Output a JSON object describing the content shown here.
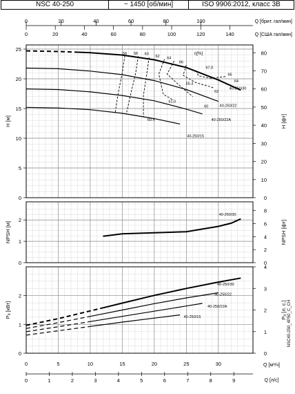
{
  "header": {
    "model": "NSC 40-250",
    "speed": "~ 1450 [об/мин]",
    "standard": "ISO 9906:2012, класс 3B"
  },
  "side_code": "NSC40-250_4P50_C_CH",
  "chart_data": {
    "type": "line",
    "top_axes": {
      "brit": {
        "label": "Q [брит. гал/мин]",
        "ticks": [
          0,
          20,
          40,
          60,
          80,
          100
        ],
        "range": [
          0,
          129.8
        ]
      },
      "us": {
        "label": "Q [США гал/мин]",
        "ticks": [
          0,
          20,
          40,
          60,
          80,
          100,
          120,
          140
        ],
        "range": [
          0,
          155.9
        ]
      }
    },
    "bottom_axes": {
      "m3h": {
        "label": "Q [м³/ч]",
        "ticks": [
          0,
          5,
          10,
          15,
          20,
          25,
          30
        ],
        "range": [
          0,
          35.4
        ]
      },
      "ls": {
        "label": "Q [л/с]",
        "ticks": [
          0,
          1,
          2,
          3,
          4,
          5,
          6,
          7,
          8,
          9
        ],
        "range": [
          0,
          9.83
        ]
      }
    },
    "head_panel": {
      "ylabel": "H [м]",
      "ylim": [
        0,
        25.7
      ],
      "yticks": [
        0,
        5,
        10,
        15,
        20,
        25
      ],
      "ylabel_right": "H [фт]",
      "ylim_right": [
        0,
        84.3
      ],
      "yticks_right": [
        0,
        10,
        20,
        30,
        40,
        50,
        60,
        70,
        80
      ],
      "eff_unit": "η[%]",
      "series": [
        {
          "name": "40-250/30",
          "x": [
            0,
            5,
            10,
            15,
            20,
            25,
            30,
            33.5
          ],
          "y": [
            24.7,
            24.6,
            24.4,
            24,
            23.2,
            21.9,
            19.8,
            18.1
          ],
          "dash_to": 8
        },
        {
          "name": "40-250/22",
          "x": [
            0,
            5,
            10,
            15,
            20,
            25,
            30
          ],
          "y": [
            21.8,
            21.7,
            21.3,
            20.7,
            19.7,
            18.2,
            16.2
          ]
        },
        {
          "name": "40-250/22A",
          "x": [
            0,
            5,
            10,
            15,
            20,
            25,
            27.5
          ],
          "y": [
            18.3,
            18.2,
            17.8,
            17.2,
            16.3,
            14.9,
            14.1
          ]
        },
        {
          "name": "40-250/15",
          "x": [
            0,
            5,
            10,
            15,
            20,
            24
          ],
          "y": [
            15.2,
            15.1,
            14.8,
            14.2,
            13.3,
            12.4
          ]
        }
      ],
      "iso_efficiency": [
        {
          "label": "56",
          "x": [
            15.4,
            15.0,
            14.4,
            13.9
          ],
          "y": [
            23.9,
            21.0,
            17.8,
            14.4
          ]
        },
        {
          "label": "58",
          "x": [
            17.5,
            17.1,
            16.4,
            15.6
          ],
          "y": [
            23.8,
            21.0,
            17.8,
            14.0
          ]
        },
        {
          "label": "60",
          "x": [
            19.2,
            18.8,
            18.3,
            18.3
          ],
          "y": [
            23.6,
            20.7,
            17.2,
            13.6
          ]
        },
        {
          "label": "62",
          "x": [
            21.6,
            20.7,
            21.4,
            23.0
          ],
          "y": [
            23.3,
            20.8,
            17.4,
            16.4
          ]
        },
        {
          "label": "64",
          "x": [
            23.1,
            22.0,
            24.0,
            26.0
          ],
          "y": [
            23.0,
            20.8,
            18.8,
            17.0
          ]
        },
        {
          "label": "66",
          "x": [
            25.0,
            24.5,
            26.4,
            29.2
          ],
          "y": [
            22.3,
            20.6,
            19.4,
            18.5
          ]
        },
        {
          "label": "67.0",
          "x": [
            26.5,
            26.9,
            28.8,
            31.2
          ],
          "y": [
            21.4,
            20.5,
            20.1,
            20.4
          ]
        }
      ],
      "efficiency_labels": [
        {
          "text": "56",
          "x": 15.4,
          "y": 24.1
        },
        {
          "text": "58",
          "x": 17.1,
          "y": 24.1
        },
        {
          "text": "60",
          "x": 18.8,
          "y": 24.0
        },
        {
          "text": "62",
          "x": 20.5,
          "y": 23.6
        },
        {
          "text": "64",
          "x": 22.3,
          "y": 23.3
        },
        {
          "text": "66",
          "x": 24.2,
          "y": 22.6
        },
        {
          "text": "67.0",
          "x": 28.6,
          "y": 21.7
        },
        {
          "text": "66",
          "x": 31.8,
          "y": 20.5
        },
        {
          "text": "64",
          "x": 32.8,
          "y": 19.4
        },
        {
          "text": "65.3",
          "x": 25.5,
          "y": 19.0
        },
        {
          "text": "62",
          "x": 29.7,
          "y": 17.7
        },
        {
          "text": "61.0",
          "x": 22.8,
          "y": 16.0
        },
        {
          "text": "60",
          "x": 28.1,
          "y": 15.2
        },
        {
          "text": "60.4",
          "x": 19.5,
          "y": 12.9
        }
      ],
      "series_labels": [
        {
          "text": "40-250/30",
          "x": 31.7,
          "y": 18.2
        },
        {
          "text": "40-250/22",
          "x": 30.2,
          "y": 15.3
        },
        {
          "text": "40-250/22A",
          "x": 28.9,
          "y": 12.9
        },
        {
          "text": "40-250/15",
          "x": 25.1,
          "y": 10.2
        }
      ]
    },
    "npsh_panel": {
      "ylabel": "NPSH [м]",
      "ylim": [
        0,
        2.85
      ],
      "yticks": [
        0,
        1,
        2
      ],
      "ylabel_right": "NPSH [фт]",
      "ylim_right": [
        0,
        9.35
      ],
      "yticks_right": [
        0,
        2,
        4,
        6,
        8
      ],
      "series": [
        {
          "name": "40-250/30",
          "x": [
            12,
            15,
            20,
            25,
            30,
            32,
            33.5
          ],
          "y": [
            1.24,
            1.35,
            1.4,
            1.45,
            1.7,
            1.85,
            2.05
          ]
        }
      ],
      "series_labels": [
        {
          "text": "40-250/30",
          "x": 30.1,
          "y": 2.2
        }
      ]
    },
    "power_panel": {
      "ylabel": "Pₐ [кВт]",
      "ylim": [
        0,
        3.0
      ],
      "yticks": [
        0,
        1,
        2
      ],
      "ylabel_right": "Pₐ [л. с.]",
      "ylim_right": [
        0,
        4.0
      ],
      "yticks_right": [
        0,
        1,
        2,
        3,
        4
      ],
      "series": [
        {
          "name": "40-250/30",
          "x": [
            0,
            5,
            10,
            15,
            20,
            25,
            30,
            33.5
          ],
          "y": [
            0.97,
            1.2,
            1.47,
            1.74,
            2.01,
            2.25,
            2.47,
            2.61
          ],
          "dash_to": 12
        },
        {
          "name": "40-250/22",
          "x": [
            0,
            5,
            10,
            15,
            20,
            25,
            30
          ],
          "y": [
            0.86,
            1.06,
            1.28,
            1.5,
            1.72,
            1.92,
            2.1
          ],
          "dash_to": 10
        },
        {
          "name": "40-250/22A",
          "x": [
            0,
            5,
            10,
            15,
            20,
            25,
            27.5
          ],
          "y": [
            0.75,
            0.92,
            1.1,
            1.28,
            1.46,
            1.64,
            1.73
          ],
          "dash_to": 10
        },
        {
          "name": "40-250/15",
          "x": [
            0,
            5,
            10,
            15,
            20,
            24
          ],
          "y": [
            0.63,
            0.78,
            0.93,
            1.08,
            1.22,
            1.33
          ],
          "dash_to": 10
        }
      ],
      "series_labels": [
        {
          "text": "40-250/30",
          "x": 29.8,
          "y": 2.35
        },
        {
          "text": "40-250/22",
          "x": 29.4,
          "y": 2.0
        },
        {
          "text": "40-250/22A",
          "x": 28.3,
          "y": 1.58
        },
        {
          "text": "40-250/15",
          "x": 24.6,
          "y": 1.22
        }
      ]
    }
  }
}
